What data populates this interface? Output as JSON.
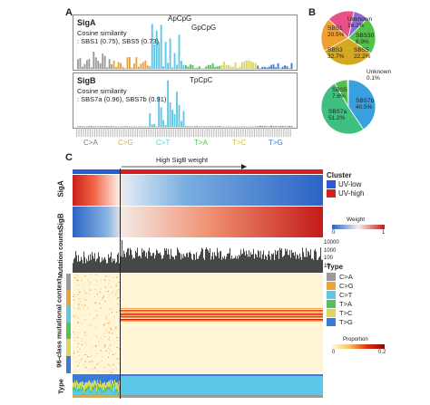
{
  "panels": {
    "a": {
      "letter": "A",
      "sigA": {
        "title": "SigA",
        "line1": "Cosine similarity",
        "line2": ": SBS1 (0.75), SBS5 (0.73)",
        "peaks": [
          "ApCpG",
          "GpCpG"
        ]
      },
      "sigB": {
        "title": "SigB",
        "line1": "Cosine similarity",
        "line2": ": SBS7a (0.96), SBS7b (0.91)",
        "peaks": [
          "TpCpC"
        ]
      },
      "mutation_types": [
        "C>A",
        "C>G",
        "C>T",
        "T>A",
        "T>C",
        "T>G"
      ]
    },
    "b": {
      "letter": "B",
      "pie1": [
        {
          "label": "SBS1",
          "value": "20.5%",
          "pct": 20.5,
          "color": "#f0a030"
        },
        {
          "label": "Unknown",
          "value": "16.2%",
          "pct": 16.2,
          "color": "#e8508a"
        },
        {
          "label": "SBS30",
          "value": "8.9%",
          "pct": 8.9,
          "color": "#8a6fd0"
        },
        {
          "label": "SBS5",
          "value": "22.2%",
          "pct": 22.2,
          "color": "#52c24a"
        },
        {
          "label": "SBS3",
          "value": "32.7%",
          "pct": 32.7,
          "color": "#d4a820"
        }
      ],
      "pie2": [
        {
          "label": "Unknown",
          "value": "0.1%",
          "pct": 0.1,
          "color": "#e8508a"
        },
        {
          "label": "SBS7b",
          "value": "40.5%",
          "pct": 40.5,
          "color": "#3aa0e0"
        },
        {
          "label": "SBS7a",
          "value": "51.2%",
          "pct": 51.2,
          "color": "#40c080"
        },
        {
          "label": "SBS5",
          "value": "7.6%",
          "pct": 7.6,
          "color": "#52c24a"
        }
      ]
    },
    "c": {
      "letter": "C",
      "arrow_label": "High SigB weight",
      "row_labels": {
        "sigA": "SigA",
        "sigB": "SigB",
        "counts": "Mutation counts",
        "context": "96-class mutational context",
        "type": "Type"
      },
      "count_ticks": [
        "10000",
        "1000",
        "100",
        "10"
      ],
      "cluster_legend": {
        "title": "Cluster",
        "items": [
          {
            "label": "UV-low",
            "color": "#2a5bd7"
          },
          {
            "label": "UV-high",
            "color": "#d62020"
          }
        ]
      },
      "weight_legend": {
        "title": "Weight",
        "min": "0",
        "max": "1"
      },
      "type_legend": {
        "title": "Type",
        "items": [
          {
            "label": "C>A",
            "color": "#9a9a9a"
          },
          {
            "label": "C>G",
            "color": "#e8a33a"
          },
          {
            "label": "C>T",
            "color": "#5cc8e8"
          },
          {
            "label": "T>A",
            "color": "#58c05a"
          },
          {
            "label": "T>C",
            "color": "#d8d85a"
          },
          {
            "label": "T>G",
            "color": "#3a7ad8"
          }
        ]
      },
      "proportion_legend": {
        "title": "Proportion",
        "min": "0",
        "max": "0.2"
      }
    }
  }
}
